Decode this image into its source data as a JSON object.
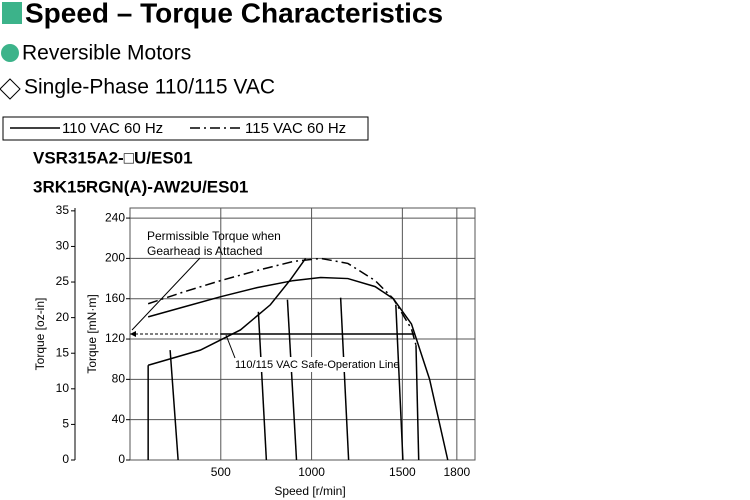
{
  "header": {
    "title": "Speed – Torque Characteristics",
    "subtitle": "Reversible Motors",
    "phase": "Single-Phase 110/115 VAC",
    "models": [
      "VSR315A2-□U/ES01",
      "3RK15RGN(A)-AW2U/ES01"
    ]
  },
  "chart_data": {
    "type": "line",
    "x_label": "Speed [r/min]",
    "y_label": "Torque [mN·m]",
    "y2_label": "Torque [oz-in]",
    "xlim": [
      0,
      1900
    ],
    "xticks": [
      500,
      1000,
      1500,
      1800
    ],
    "ylim": [
      0,
      250
    ],
    "yticks": [
      0,
      40,
      80,
      120,
      160,
      200,
      240
    ],
    "y2lim": [
      0,
      35.4
    ],
    "y2ticks": [
      0,
      5,
      10,
      15,
      20,
      25,
      30,
      35
    ],
    "grid": true,
    "series": [
      {
        "name": "110 VAC 60 Hz",
        "color": "#000000",
        "style": "solid",
        "x": [
          100,
          300,
          500,
          700,
          900,
          1050,
          1200,
          1350,
          1450,
          1550,
          1650,
          1750
        ],
        "values": [
          142,
          152,
          162,
          171,
          178,
          181,
          180,
          172,
          160,
          135,
          80,
          0
        ]
      },
      {
        "name": "115 VAC 60 Hz",
        "color": "#000000",
        "style": "dash-dot",
        "x": [
          100,
          300,
          500,
          700,
          900,
          1050,
          1200,
          1350,
          1450,
          1550,
          1575
        ],
        "values": [
          155,
          167,
          178,
          188,
          197,
          200,
          195,
          178,
          160,
          130,
          114
        ]
      }
    ],
    "curves": [
      {
        "x": [
          100,
          387,
          608,
          773,
          884,
          967
        ],
        "values": [
          94,
          109,
          129,
          154,
          179,
          200
        ]
      },
      {
        "x": [
          100,
          100
        ],
        "values": [
          94,
          0
        ]
      },
      {
        "x": [
          221,
          265
        ],
        "values": [
          109,
          0
        ]
      },
      {
        "x": [
          707,
          751
        ],
        "values": [
          147,
          0
        ]
      },
      {
        "x": [
          867,
          917
        ],
        "values": [
          159,
          0
        ]
      },
      {
        "x": [
          1160,
          1204
        ],
        "values": [
          161,
          0
        ]
      },
      {
        "x": [
          1464,
          1503
        ],
        "values": [
          154,
          0
        ]
      },
      {
        "x": [
          1575,
          1590
        ],
        "values": [
          114,
          0
        ]
      }
    ],
    "permissible_torque": {
      "value": 125,
      "dashed_to": 500,
      "end": 1570
    },
    "annotations": [
      "Permissible Torque when\nGearhead is Attached",
      "110/115 VAC Safe-Operation Line"
    ]
  }
}
